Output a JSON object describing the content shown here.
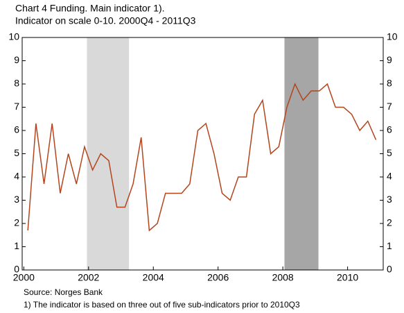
{
  "chart_data": {
    "type": "line",
    "title": "Chart 4 Funding. Main indicator 1).",
    "subtitle": "Indicator on scale 0-10. 2000Q4 - 2011Q3",
    "source": "Source: Norges Bank",
    "footnote": "1) The indicator is based on three out of five sub-indicators prior to 2010Q3",
    "x": [
      2000.125,
      2000.375,
      2000.625,
      2000.875,
      2001.125,
      2001.375,
      2001.625,
      2001.875,
      2002.125,
      2002.375,
      2002.625,
      2002.875,
      2003.125,
      2003.375,
      2003.625,
      2003.875,
      2004.125,
      2004.375,
      2004.625,
      2004.875,
      2005.125,
      2005.375,
      2005.625,
      2005.875,
      2006.125,
      2006.375,
      2006.625,
      2006.875,
      2007.125,
      2007.375,
      2007.625,
      2007.875,
      2008.125,
      2008.375,
      2008.625,
      2008.875,
      2009.125,
      2009.375,
      2009.625,
      2009.875,
      2010.125,
      2010.375,
      2010.625,
      2010.875
    ],
    "series": [
      {
        "color": "#b4441c",
        "values": [
          1.7,
          6.3,
          3.7,
          6.3,
          3.3,
          5.0,
          3.7,
          5.3,
          4.3,
          5.0,
          4.7,
          2.7,
          2.7,
          3.7,
          5.7,
          1.7,
          2.0,
          3.3,
          3.3,
          3.3,
          3.7,
          6.0,
          6.3,
          5.0,
          3.3,
          3.0,
          4.0,
          4.0,
          6.7,
          7.3,
          5.0,
          5.3,
          7.0,
          8.0,
          7.3,
          7.7,
          7.7,
          8.0,
          7.0,
          7.0,
          6.7,
          6.0,
          6.4,
          5.6
        ]
      }
    ],
    "shaded": [
      {
        "x0": 2001.95,
        "x1": 2003.25,
        "color": "#d9d9d9"
      },
      {
        "x0": 2008.05,
        "x1": 2009.1,
        "color": "#a6a6a6"
      }
    ],
    "xlim": [
      1999.95,
      2011.1
    ],
    "xticks": [
      2000,
      2002,
      2004,
      2006,
      2008,
      2010
    ],
    "ylim": [
      0,
      10
    ],
    "yticks": [
      0,
      1,
      2,
      3,
      4,
      5,
      6,
      7,
      8,
      9,
      10
    ]
  }
}
